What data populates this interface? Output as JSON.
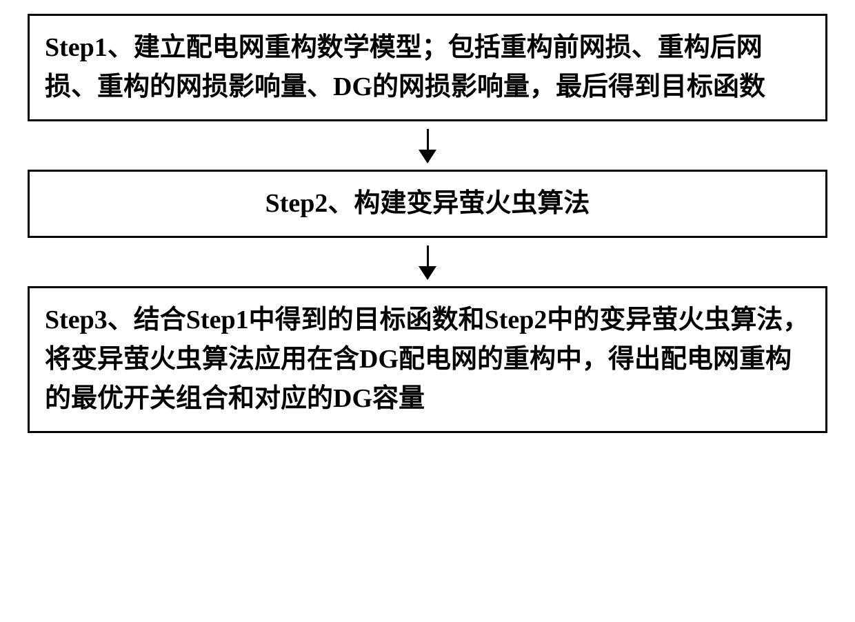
{
  "flowchart": {
    "type": "flowchart",
    "background_color": "#ffffff",
    "border_color": "#000000",
    "border_width": 3,
    "text_color": "#000000",
    "font_size": 38,
    "font_weight": "bold",
    "arrow_color": "#000000",
    "arrow_height": 48,
    "arrowhead_width": 26,
    "arrowhead_height": 20,
    "nodes": [
      {
        "id": "step1",
        "align": "left",
        "text": "Step1、建立配电网重构数学模型；包括重构前网损、重构后网损、重构的网损影响量、DG的网损影响量，最后得到目标函数"
      },
      {
        "id": "step2",
        "align": "center",
        "text": "Step2、构建变异萤火虫算法"
      },
      {
        "id": "step3",
        "align": "left",
        "text": "Step3、结合Step1中得到的目标函数和Step2中的变异萤火虫算法，将变异萤火虫算法应用在含DG配电网的重构中，得出配电网重构的最优开关组合和对应的DG容量"
      }
    ],
    "edges": [
      {
        "from": "step1",
        "to": "step2"
      },
      {
        "from": "step2",
        "to": "step3"
      }
    ]
  }
}
